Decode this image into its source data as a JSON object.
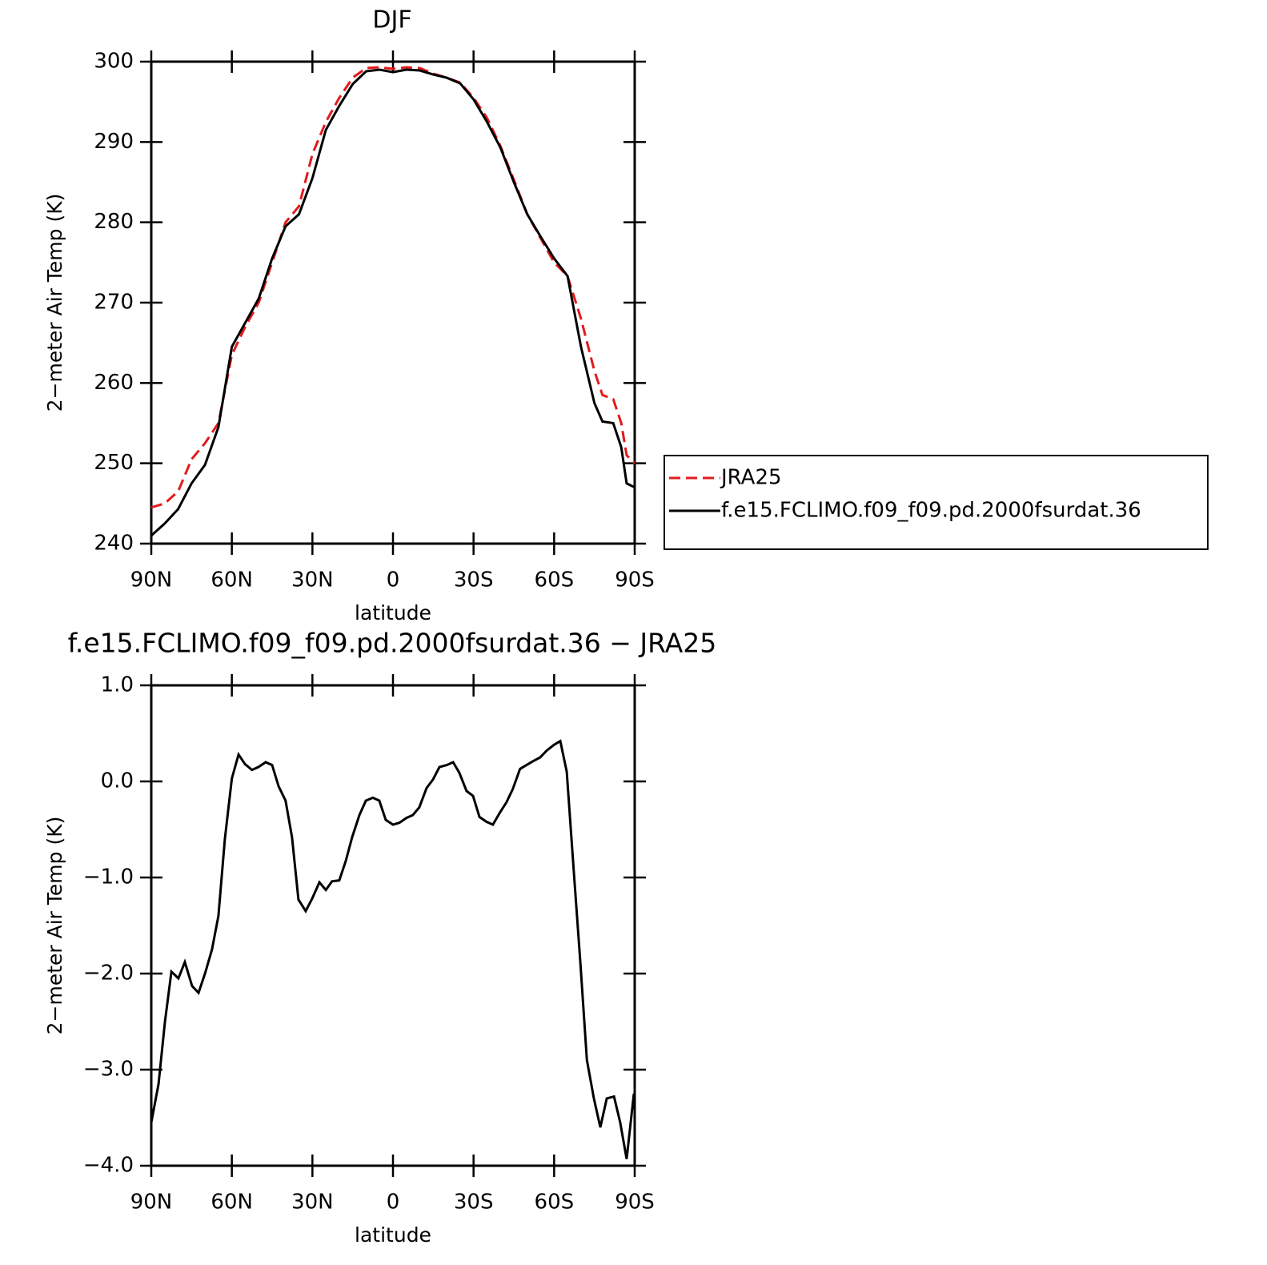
{
  "chart_data": [
    {
      "type": "line",
      "title": "DJF",
      "xlabel": "latitude",
      "ylabel": "2−meter Air Temp (K)",
      "x": [
        90,
        85,
        80,
        75,
        70,
        65,
        60,
        55,
        50,
        45,
        40,
        35,
        30,
        25,
        20,
        15,
        10,
        5,
        0,
        -5,
        -10,
        -15,
        -20,
        -25,
        -30,
        -35,
        -40,
        -45,
        -50,
        -55,
        -60,
        -65,
        -70,
        -75,
        -78,
        -82,
        -85,
        -87,
        -90
      ],
      "series": [
        {
          "name": "JRA25",
          "color": "#e41a1c",
          "style": "dashed",
          "values": [
            244.5,
            245,
            246.5,
            250.5,
            252.5,
            255,
            263.5,
            267,
            270,
            275,
            280,
            282,
            288.5,
            292.5,
            295.5,
            298,
            299.2,
            299.3,
            299.1,
            299.3,
            299.2,
            298.5,
            298,
            297.4,
            295.5,
            293,
            289.5,
            285.3,
            281,
            278,
            275,
            273.3,
            268,
            261.5,
            258.5,
            258,
            255,
            251,
            250
          ]
        },
        {
          "name": "f.e15.FCLIMO.f09_f09.pd.2000fsurdat.36",
          "color": "#000000",
          "style": "solid",
          "values": [
            241,
            242.5,
            244.3,
            247.5,
            249.8,
            254.5,
            264.5,
            267.5,
            270.5,
            275.5,
            279.5,
            281,
            285.5,
            291.5,
            294.5,
            297.2,
            298.8,
            299,
            298.7,
            299,
            298.9,
            298.4,
            298,
            297.3,
            295.3,
            292.5,
            289.3,
            285,
            281,
            278.2,
            275.5,
            273.3,
            264.5,
            257.5,
            255.2,
            255,
            252,
            247.5,
            247
          ]
        }
      ],
      "xlim": [
        90,
        -90
      ],
      "xticks": [
        {
          "value": 90,
          "label": "90N"
        },
        {
          "value": 60,
          "label": "60N"
        },
        {
          "value": 30,
          "label": "30N"
        },
        0,
        {
          "value": -30,
          "label": "30S"
        },
        {
          "value": -60,
          "label": "60S"
        },
        {
          "value": -90,
          "label": "90S"
        }
      ],
      "ylim": [
        240,
        300
      ],
      "yticks": [
        240,
        250,
        260,
        270,
        280,
        290,
        300
      ],
      "legend": "right"
    },
    {
      "type": "line",
      "title": "f.e15.FCLIMO.f09_f09.pd.2000fsurdat.36 − JRA25",
      "xlabel": "latitude",
      "ylabel": "2−meter Air Temp (K)",
      "x": [
        90,
        87.3,
        84.9,
        82.5,
        79.9,
        77.5,
        74.8,
        72.4,
        70,
        67.4,
        65,
        62.6,
        60,
        57.5,
        55.1,
        52.5,
        50.1,
        47.4,
        45,
        42.6,
        40,
        37.6,
        35.2,
        32.5,
        30.1,
        27.4,
        25,
        22.7,
        20,
        17.6,
        15.2,
        12.5,
        10.1,
        7.5,
        5.1,
        2.7,
        0,
        -2.4,
        -5,
        -7.4,
        -9.8,
        -12.5,
        -14.9,
        -17.3,
        -20,
        -22.4,
        -24.7,
        -27.4,
        -29.8,
        -32.2,
        -34.8,
        -37.2,
        -39.9,
        -42.2,
        -44.6,
        -47.3,
        -49.7,
        -52.1,
        -54.8,
        -57.2,
        -59.9,
        -62.3,
        -64.7,
        -67.1,
        -69.8,
        -72.2,
        -74.8,
        -77.2,
        -79.6,
        -82.3,
        -84.6,
        -87,
        -89.7
      ],
      "series": [
        {
          "color": "#000000",
          "style": "solid",
          "values": [
            -3.55,
            -3.15,
            -2.5,
            -1.98,
            -2.05,
            -1.88,
            -2.13,
            -2.2,
            -2.0,
            -1.75,
            -1.4,
            -0.6,
            0.03,
            0.28,
            0.18,
            0.12,
            0.15,
            0.2,
            0.17,
            -0.05,
            -0.2,
            -0.58,
            -1.23,
            -1.35,
            -1.22,
            -1.05,
            -1.13,
            -1.04,
            -1.03,
            -0.83,
            -0.58,
            -0.35,
            -0.2,
            -0.17,
            -0.2,
            -0.4,
            -0.45,
            -0.43,
            -0.38,
            -0.35,
            -0.27,
            -0.07,
            0.02,
            0.15,
            0.17,
            0.2,
            0.09,
            -0.1,
            -0.15,
            -0.37,
            -0.42,
            -0.45,
            -0.32,
            -0.22,
            -0.08,
            0.13,
            0.17,
            0.21,
            0.25,
            0.32,
            0.38,
            0.42,
            0.1,
            -0.85,
            -1.9,
            -2.9,
            -3.3,
            -3.6,
            -3.3,
            -3.28,
            -3.55,
            -3.93,
            -3.25
          ]
        }
      ],
      "xlim": [
        90,
        -90
      ],
      "xticks": [
        {
          "value": 90,
          "label": "90N"
        },
        {
          "value": 60,
          "label": "60N"
        },
        {
          "value": 30,
          "label": "30N"
        },
        0,
        {
          "value": -30,
          "label": "30S"
        },
        {
          "value": -60,
          "label": "60S"
        },
        {
          "value": -90,
          "label": "90S"
        }
      ],
      "ylim": [
        -4,
        1
      ],
      "yticks": [
        {
          "value": -4,
          "label": "−4.0"
        },
        {
          "value": -3,
          "label": "−3.0"
        },
        {
          "value": -2,
          "label": "−2.0"
        },
        {
          "value": -1,
          "label": "−1.0"
        },
        {
          "value": 0,
          "label": "0.0"
        },
        {
          "value": 1,
          "label": "1.0"
        }
      ]
    }
  ]
}
